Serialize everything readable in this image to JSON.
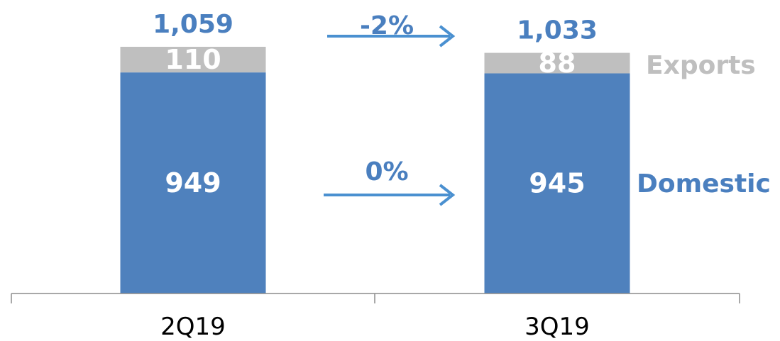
{
  "colors": {
    "domestic": "#4f81bd",
    "exports": "#bfbfbf",
    "accent_text": "#4a7fbf",
    "arrow": "#4a90d0",
    "axis": "#8c8c8c"
  },
  "chart_data": {
    "type": "bar",
    "stacked": true,
    "categories": [
      "2Q19",
      "3Q19"
    ],
    "series": [
      {
        "name": "Domestic",
        "values": [
          949,
          945
        ]
      },
      {
        "name": "Exports",
        "values": [
          110,
          88
        ]
      }
    ],
    "segment_labels": {
      "Domestic": [
        "949",
        "945"
      ],
      "Exports": [
        "110",
        "88"
      ]
    },
    "totals": [
      "1,059",
      "1,033"
    ],
    "changes": {
      "total": "-2%",
      "domestic": "0%"
    },
    "legend": {
      "exports": "Exports",
      "domestic": "Domestic",
      "placement": "right of last bar"
    },
    "ylim": [
      0,
      1120
    ],
    "grid": false,
    "title": "",
    "xlabel": "",
    "ylabel": ""
  }
}
